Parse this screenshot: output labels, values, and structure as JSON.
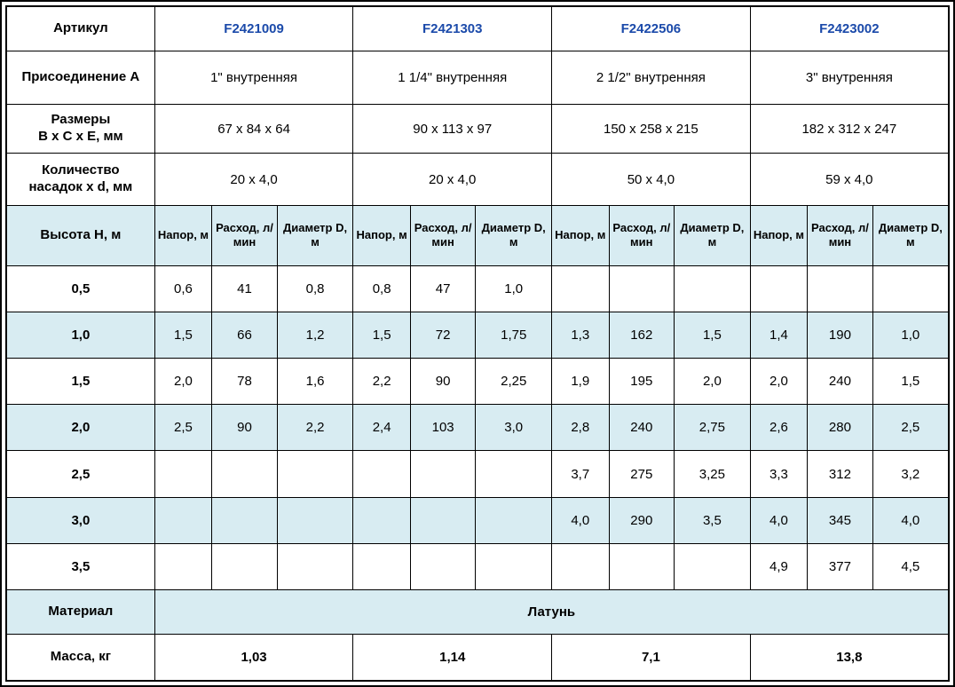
{
  "table": {
    "articles_row": {
      "label": "Артикул",
      "values": [
        "F2421009",
        "F2421303",
        "F2422506",
        "F2423002"
      ]
    },
    "connection_row": {
      "label": "Присоединение А",
      "values": [
        "1\" внутренняя",
        "1 1/4\" внутренняя",
        "2 1/2\" внутренняя",
        "3\" внутренняя"
      ]
    },
    "dimensions_row": {
      "label_line1": "Размеры",
      "label_line2": "В х С х Е, мм",
      "values": [
        "67 х 84 х 64",
        "90 х 113 х 97",
        "150 х 258 х 215",
        "182 х 312 х 247"
      ]
    },
    "nozzles_row": {
      "label_line1": "Количество",
      "label_line2": "насадок х d, мм",
      "values": [
        "20 х 4,0",
        "20 х 4,0",
        "50 х 4,0",
        "59 х 4,0"
      ]
    },
    "height_header": "Высота Н, м",
    "sub_headers": [
      "Напор, м",
      "Расход, л/мин",
      "Диаметр D, м"
    ],
    "data_rows": [
      {
        "height": "0,5",
        "cells": [
          "0,6",
          "41",
          "0,8",
          "0,8",
          "47",
          "1,0",
          "",
          "",
          "",
          "",
          "",
          ""
        ]
      },
      {
        "height": "1,0",
        "cells": [
          "1,5",
          "66",
          "1,2",
          "1,5",
          "72",
          "1,75",
          "1,3",
          "162",
          "1,5",
          "1,4",
          "190",
          "1,0"
        ]
      },
      {
        "height": "1,5",
        "cells": [
          "2,0",
          "78",
          "1,6",
          "2,2",
          "90",
          "2,25",
          "1,9",
          "195",
          "2,0",
          "2,0",
          "240",
          "1,5"
        ]
      },
      {
        "height": "2,0",
        "cells": [
          "2,5",
          "90",
          "2,2",
          "2,4",
          "103",
          "3,0",
          "2,8",
          "240",
          "2,75",
          "2,6",
          "280",
          "2,5"
        ]
      },
      {
        "height": "2,5",
        "cells": [
          "",
          "",
          "",
          "",
          "",
          "",
          "3,7",
          "275",
          "3,25",
          "3,3",
          "312",
          "3,2"
        ]
      },
      {
        "height": "3,0",
        "cells": [
          "",
          "",
          "",
          "",
          "",
          "",
          "4,0",
          "290",
          "3,5",
          "4,0",
          "345",
          "4,0"
        ]
      },
      {
        "height": "3,5",
        "cells": [
          "",
          "",
          "",
          "",
          "",
          "",
          "",
          "",
          "",
          "4,9",
          "377",
          "4,5"
        ]
      }
    ],
    "material_row": {
      "label": "Материал",
      "value": "Латунь"
    },
    "mass_row": {
      "label": "Масса, кг",
      "values": [
        "1,03",
        "1,14",
        "7,1",
        "13,8"
      ]
    }
  },
  "colors": {
    "shaded_band": "#d8ecf2",
    "article_blue": "#1b4aaa",
    "border": "#000000"
  }
}
